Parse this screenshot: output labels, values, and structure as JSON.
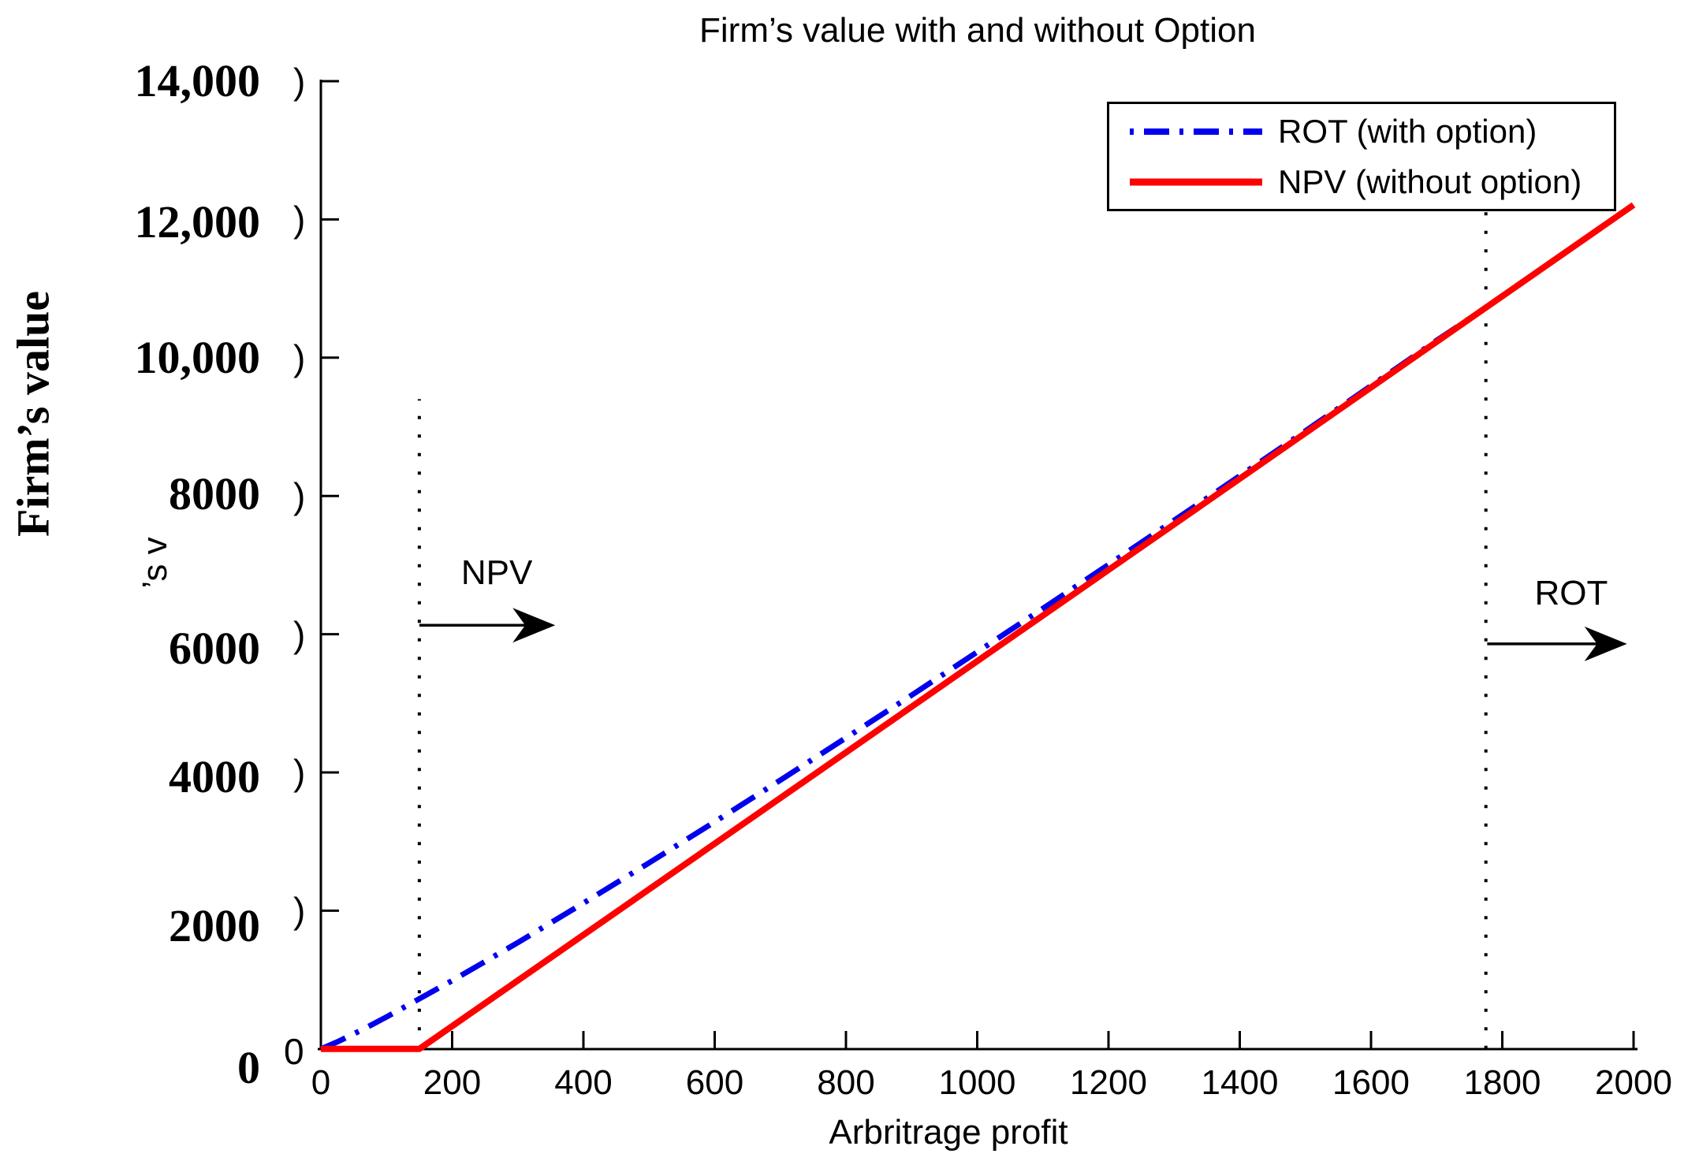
{
  "figure": {
    "background": "#ffffff"
  },
  "chart_data": {
    "type": "line",
    "title": "Firm’s value with and without Option",
    "xlabel": "Arbritrage profit",
    "ylabel": "Firm’s value",
    "xlim": [
      0,
      2000
    ],
    "ylim": [
      0,
      14000
    ],
    "grid": false,
    "axis_color": "#000000",
    "x_ticks": {
      "values": [
        0,
        200,
        400,
        600,
        800,
        1000,
        1200,
        1400,
        1600,
        1800,
        2000
      ],
      "labels": [
        "0",
        "200",
        "400",
        "600",
        "800",
        "1000",
        "1200",
        "1400",
        "1600",
        "1800",
        "2000"
      ]
    },
    "y_ticks": {
      "values": [
        0,
        2000,
        4000,
        6000,
        8000,
        10000,
        12000,
        14000
      ],
      "labels": [
        "0",
        "2000",
        "4000",
        "6000",
        "8000",
        "10,000",
        "12,000",
        "14,000"
      ]
    },
    "legend": {
      "position": "top-right",
      "border_color": "#000000"
    },
    "series": [
      {
        "name": "ROT (with option)",
        "color": "#0000ee",
        "line_style": "dash-dot",
        "points": [
          [
            0,
            0
          ],
          [
            25,
            102
          ],
          [
            50,
            217
          ],
          [
            75,
            338
          ],
          [
            100,
            463
          ],
          [
            200,
            989
          ],
          [
            300,
            1538
          ],
          [
            400,
            2109
          ],
          [
            500,
            2692
          ],
          [
            600,
            3285
          ],
          [
            700,
            3888
          ],
          [
            800,
            4500
          ],
          [
            900,
            5117
          ],
          [
            1000,
            5742
          ],
          [
            1100,
            6372
          ],
          [
            1200,
            7006
          ],
          [
            1300,
            7646
          ],
          [
            1400,
            8290
          ],
          [
            1500,
            8939
          ],
          [
            1600,
            9593
          ],
          [
            1700,
            10250
          ],
          [
            1775,
            10725
          ],
          [
            1800,
            10890
          ],
          [
            1900,
            11550
          ],
          [
            2000,
            12210
          ]
        ]
      },
      {
        "name": "NPV (without option)",
        "color": "#ff0000",
        "line_style": "solid",
        "points": [
          [
            0,
            0
          ],
          [
            150,
            0
          ],
          [
            2000,
            12210
          ]
        ]
      }
    ],
    "annotations": [
      {
        "label": "NPV",
        "threshold_x": 150,
        "line_y_span": [
          0,
          9400
        ],
        "arrow_y": 6130,
        "arrow_x_span": [
          150,
          357
        ],
        "label_x": 268,
        "label_y": 6880
      },
      {
        "label": "ROT",
        "threshold_x": 1775,
        "line_y_span": [
          0,
          12270
        ],
        "arrow_y": 5860,
        "arrow_x_span": [
          1777,
          1990
        ],
        "label_x": 1905,
        "label_y": 6590
      }
    ],
    "axis_artifacts": {
      "ylabel_fragment": "’s v",
      "tick_fragment_glyph": ")",
      "zero_remnant": "0"
    }
  }
}
